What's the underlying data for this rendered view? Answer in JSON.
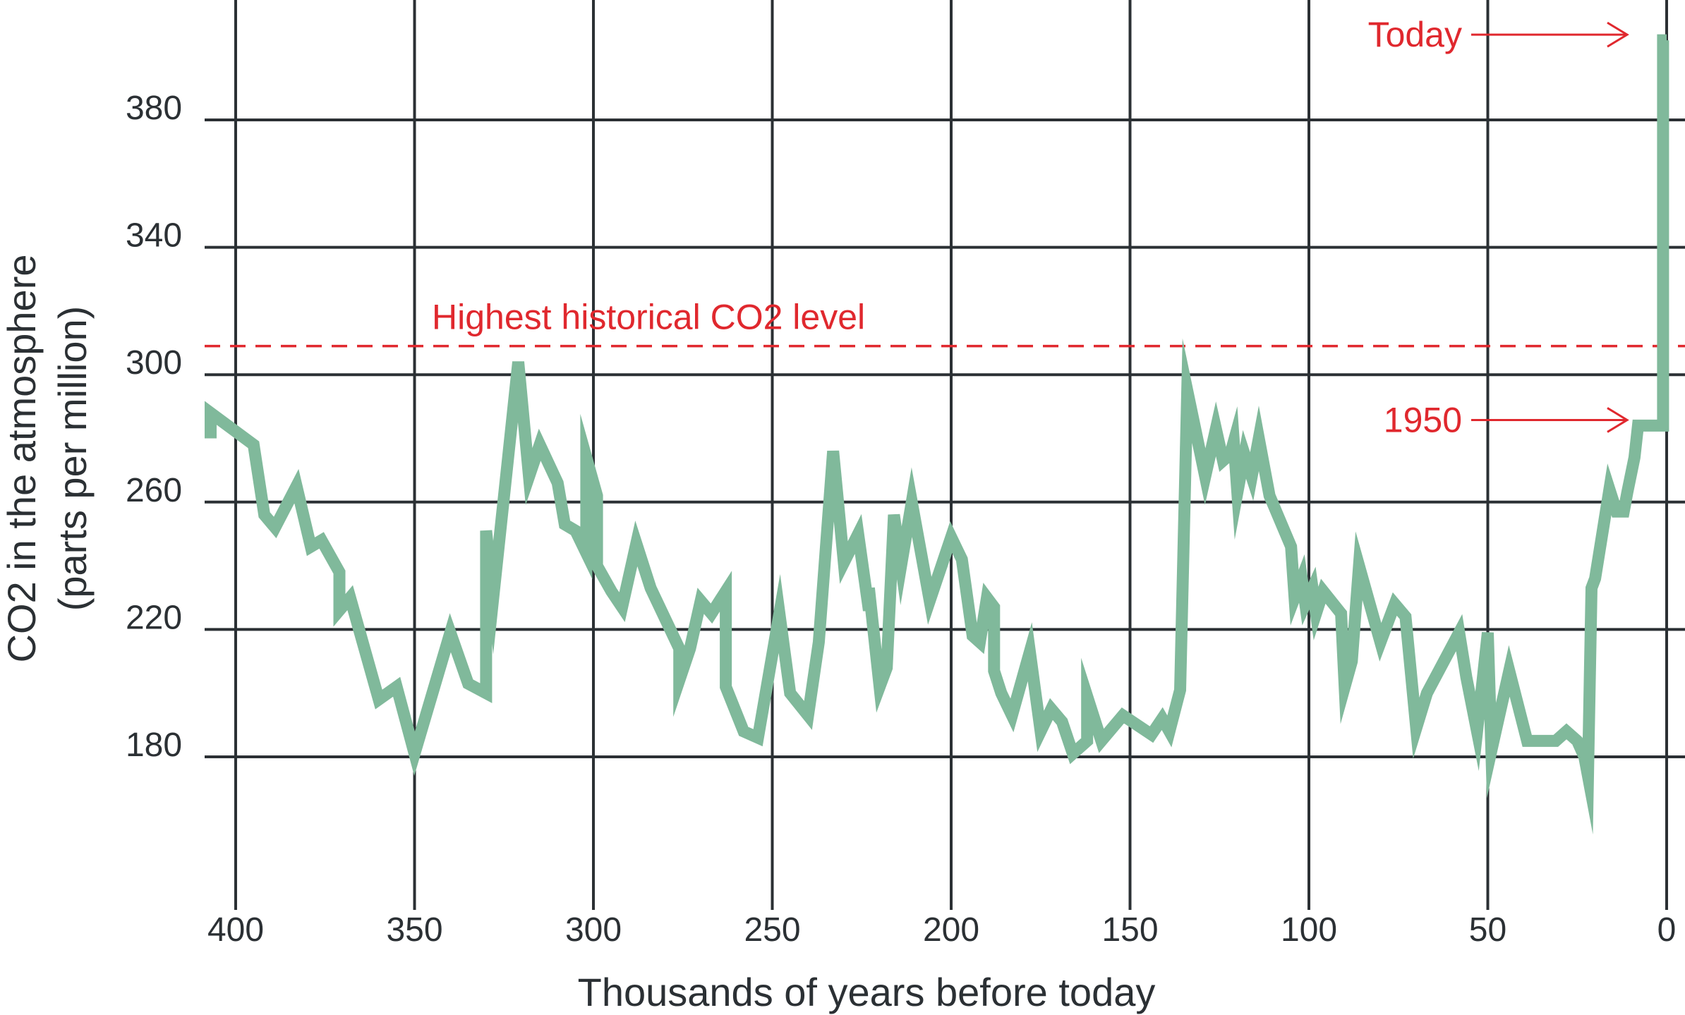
{
  "chart_data": {
    "type": "line",
    "xlabel": "Thousands of years before today",
    "ylabel": [
      "CO2 in the atmosphere",
      "(parts per million)"
    ],
    "xlim": [
      407,
      0
    ],
    "ylim": [
      136,
      415
    ],
    "x_ticks": [
      {
        "value": 400,
        "label": "400"
      },
      {
        "value": 350,
        "label": "350"
      },
      {
        "value": 300,
        "label": "300"
      },
      {
        "value": 250,
        "label": "250"
      },
      {
        "value": 200,
        "label": "200"
      },
      {
        "value": 150,
        "label": "150"
      },
      {
        "value": 100,
        "label": "100"
      },
      {
        "value": 50,
        "label": "50"
      },
      {
        "value": 0,
        "label": "0"
      }
    ],
    "y_ticks": [
      {
        "value": 180,
        "label": "180"
      },
      {
        "value": 220,
        "label": "220"
      },
      {
        "value": 260,
        "label": "260"
      },
      {
        "value": 300,
        "label": "300"
      },
      {
        "value": 340,
        "label": "340"
      },
      {
        "value": 380,
        "label": "380"
      }
    ],
    "grid": true,
    "legend": "none",
    "reference_line": {
      "value": 309,
      "label": "Highest historical CO2 level",
      "style": "dashed",
      "color": "#e0282e"
    },
    "annotations": [
      {
        "label": "Today",
        "x": 0,
        "y": 405
      },
      {
        "label": "1950",
        "x": 0,
        "y": 284
      }
    ],
    "colors": {
      "series": "#80b99b",
      "grid": "#2b3034",
      "annotation": "#e0282e"
    },
    "series": [
      {
        "x": [
          407,
          407,
          395,
          392,
          389,
          383,
          379,
          376,
          371,
          371,
          368,
          360,
          355,
          350,
          340,
          335,
          330,
          330,
          328,
          321,
          318,
          315,
          310,
          308,
          305,
          302,
          302,
          299,
          299,
          295,
          292,
          288,
          284,
          276,
          276,
          273,
          270,
          267,
          263,
          263,
          258,
          254,
          248,
          245,
          240,
          237,
          233,
          230,
          226,
          223,
          223,
          220,
          218,
          216,
          214,
          211,
          206,
          200,
          197,
          194,
          192,
          190,
          188,
          188,
          186,
          183,
          178,
          175,
          172,
          169,
          166,
          162,
          162,
          158,
          152,
          144,
          141,
          139,
          136,
          134,
          129,
          126,
          124,
          122,
          121,
          120,
          118,
          116,
          114,
          111,
          105,
          104,
          102,
          101,
          99,
          98,
          96,
          91,
          90,
          88,
          86,
          80,
          76,
          73,
          70,
          67,
          58,
          56,
          53,
          50,
          49,
          44,
          39,
          31,
          28,
          25,
          23,
          22,
          21,
          20,
          16,
          14,
          12,
          11,
          9,
          8,
          1,
          1,
          0
        ],
        "y": [
          280,
          288,
          278,
          256,
          252,
          265,
          246,
          248,
          238,
          226,
          230,
          198,
          202,
          181,
          219,
          203,
          200,
          251,
          230,
          304,
          268,
          278,
          266,
          253,
          251,
          244,
          274,
          262,
          240,
          232,
          227,
          247,
          233,
          214,
          204,
          214,
          229,
          225,
          232,
          202,
          188,
          186,
          225,
          200,
          193,
          216,
          276,
          241,
          250,
          226,
          233,
          202,
          208,
          256,
          240,
          260,
          229,
          249,
          242,
          218,
          216,
          230,
          227,
          207,
          200,
          193,
          213,
          188,
          195,
          191,
          181,
          185,
          199,
          185,
          193,
          187,
          192,
          188,
          201,
          295,
          268,
          283,
          273,
          275,
          279,
          263,
          275,
          268,
          280,
          262,
          246,
          230,
          236,
          228,
          233,
          225,
          232,
          225,
          202,
          210,
          240,
          216,
          228,
          224,
          189,
          200,
          219,
          205,
          188,
          219,
          182,
          207,
          185,
          185,
          188,
          185,
          180,
          174,
          233,
          236,
          264,
          257,
          257,
          263,
          274,
          284,
          284,
          405,
          405
        ]
      }
    ]
  }
}
